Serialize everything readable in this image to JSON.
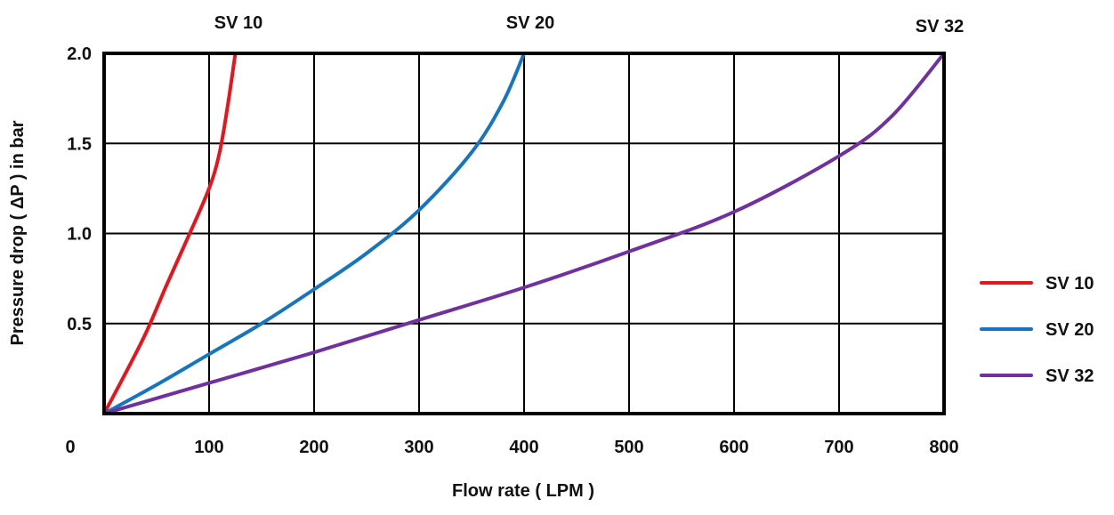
{
  "chart_data": {
    "type": "line",
    "title": "",
    "xlabel": "Flow rate ( LPM )",
    "ylabel": "Pressure drop ( ΔP ) in bar",
    "xlim": [
      0,
      800
    ],
    "ylim": [
      0,
      2.0
    ],
    "x_ticks": [
      "0",
      "100",
      "200",
      "300",
      "400",
      "500",
      "600",
      "700",
      "800"
    ],
    "y_ticks": [
      "0.5",
      "1.0",
      "1.5",
      "2.0"
    ],
    "x_tick_values": [
      0,
      100,
      200,
      300,
      400,
      500,
      600,
      700,
      800
    ],
    "y_tick_values": [
      0.5,
      1.0,
      1.5,
      2.0
    ],
    "grid": true,
    "legend": "right",
    "series": [
      {
        "name": "SV 10",
        "color": "#e8141b",
        "top_label": "SV 10",
        "x": [
          0,
          20,
          40,
          60,
          80,
          100,
          110,
          118,
          125
        ],
        "y": [
          0,
          0.22,
          0.45,
          0.72,
          0.98,
          1.25,
          1.45,
          1.72,
          2.0
        ]
      },
      {
        "name": "SV 20",
        "color": "#1675c0",
        "top_label": "SV 20",
        "x": [
          0,
          50,
          100,
          150,
          200,
          250,
          300,
          350,
          380,
          400
        ],
        "y": [
          0,
          0.16,
          0.33,
          0.5,
          0.69,
          0.89,
          1.13,
          1.45,
          1.73,
          2.0
        ]
      },
      {
        "name": "SV 32",
        "color": "#7030a0",
        "top_label": "SV 32",
        "x": [
          0,
          100,
          200,
          300,
          400,
          500,
          600,
          700,
          750,
          800
        ],
        "y": [
          0,
          0.17,
          0.34,
          0.52,
          0.7,
          0.9,
          1.12,
          1.43,
          1.65,
          2.0
        ]
      }
    ]
  }
}
